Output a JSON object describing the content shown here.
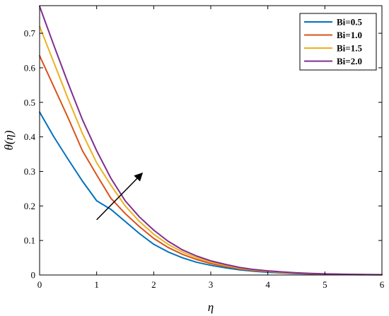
{
  "chart_data": {
    "type": "line",
    "xlabel": "η",
    "ylabel": "θ(η)",
    "xlim": [
      0,
      6
    ],
    "ylim": [
      0,
      0.78
    ],
    "xticks": [
      "0",
      "1",
      "2",
      "3",
      "4",
      "5",
      "6"
    ],
    "yticks": [
      "0",
      "0.1",
      "0.2",
      "0.3",
      "0.4",
      "0.5",
      "0.6",
      "0.7"
    ],
    "grid": false,
    "legend_position": "top-right",
    "x": [
      0,
      0.25,
      0.5,
      0.75,
      1.0,
      1.25,
      1.5,
      1.75,
      2.0,
      2.25,
      2.5,
      2.75,
      3.0,
      3.25,
      3.5,
      3.75,
      4.0,
      4.25,
      4.5,
      4.75,
      5.0,
      5.25,
      5.5,
      5.75,
      6.0
    ],
    "series": [
      {
        "name": "Bi=0.5",
        "color": "#0072BD",
        "values": [
          0.472,
          0.4,
          0.335,
          0.272,
          0.215,
          0.19,
          0.155,
          0.12,
          0.089,
          0.067,
          0.05,
          0.037,
          0.028,
          0.021,
          0.015,
          0.011,
          0.008,
          0.006,
          0.004,
          0.003,
          0.002,
          0.0015,
          0.001,
          0.0007,
          0.0005
        ]
      },
      {
        "name": "Bi=1.0",
        "color": "#D95319",
        "values": [
          0.635,
          0.545,
          0.455,
          0.36,
          0.29,
          0.222,
          0.178,
          0.14,
          0.106,
          0.08,
          0.06,
          0.045,
          0.033,
          0.025,
          0.018,
          0.013,
          0.01,
          0.007,
          0.005,
          0.0037,
          0.0027,
          0.002,
          0.0014,
          0.001,
          0.0007
        ]
      },
      {
        "name": "Bi=1.5",
        "color": "#EDB120",
        "values": [
          0.72,
          0.615,
          0.51,
          0.41,
          0.325,
          0.26,
          0.2,
          0.155,
          0.118,
          0.089,
          0.067,
          0.05,
          0.037,
          0.028,
          0.02,
          0.015,
          0.011,
          0.008,
          0.006,
          0.004,
          0.003,
          0.0022,
          0.0016,
          0.0012,
          0.0008
        ]
      },
      {
        "name": "Bi=2.0",
        "color": "#7E2F8E",
        "values": [
          0.778,
          0.665,
          0.555,
          0.45,
          0.36,
          0.28,
          0.215,
          0.168,
          0.13,
          0.098,
          0.073,
          0.055,
          0.041,
          0.031,
          0.022,
          0.016,
          0.012,
          0.009,
          0.0065,
          0.0047,
          0.0034,
          0.0025,
          0.0018,
          0.0013,
          0.0009
        ]
      }
    ],
    "annotations": [
      {
        "type": "arrow",
        "from": [
          1.0,
          0.16
        ],
        "to": [
          1.8,
          0.295
        ]
      }
    ]
  }
}
